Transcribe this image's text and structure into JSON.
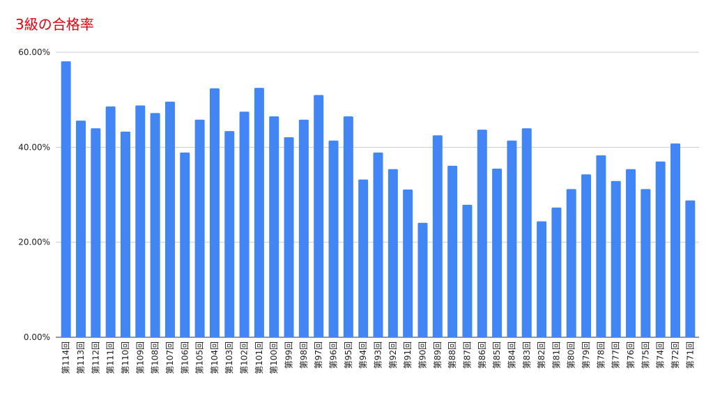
{
  "chart_data": {
    "type": "bar",
    "title": "3級の合格率",
    "categories": [
      "第114回",
      "第113回",
      "第112回",
      "第111回",
      "第110回",
      "第109回",
      "第108回",
      "第107回",
      "第106回",
      "第105回",
      "第104回",
      "第103回",
      "第102回",
      "第101回",
      "第100回",
      "第99回",
      "第98回",
      "第97回",
      "第96回",
      "第95回",
      "第94回",
      "第93回",
      "第92回",
      "第91回",
      "第90回",
      "第89回",
      "第88回",
      "第87回",
      "第86回",
      "第85回",
      "第84回",
      "第83回",
      "第82回",
      "第81回",
      "第80回",
      "第79回",
      "第78回",
      "第77回",
      "第76回",
      "第75回",
      "第74回",
      "第72回",
      "第71回"
    ],
    "values": [
      58.1,
      45.6,
      44.0,
      48.6,
      43.3,
      48.8,
      47.2,
      49.6,
      38.9,
      45.8,
      52.4,
      43.4,
      47.5,
      52.5,
      46.5,
      42.1,
      45.8,
      51.0,
      41.4,
      46.5,
      33.2,
      38.9,
      35.4,
      31.1,
      24.1,
      42.5,
      36.1,
      27.9,
      43.7,
      35.5,
      41.4,
      44.0,
      24.4,
      27.3,
      31.2,
      34.3,
      38.3,
      32.9,
      35.4,
      31.2,
      37.0,
      40.8,
      28.8
    ],
    "color": "#4285f4",
    "ylim": [
      0,
      60
    ],
    "yticks": [
      {
        "value": 0,
        "label": "0.00%"
      },
      {
        "value": 20,
        "label": "20.00%"
      },
      {
        "value": 40,
        "label": "40.00%"
      },
      {
        "value": 60,
        "label": "60.00%"
      }
    ],
    "grid": true
  }
}
